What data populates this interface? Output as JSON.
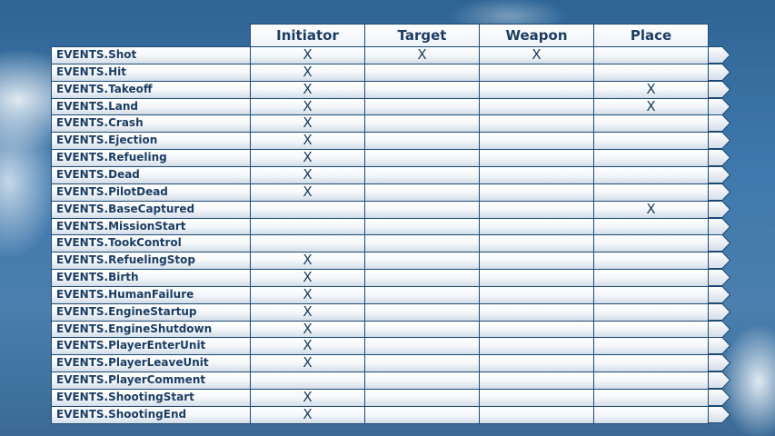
{
  "columns": [
    "Initiator",
    "Target",
    "Weapon",
    "Place"
  ],
  "mark_symbol": "X",
  "rows": [
    {
      "event": "EVENTS.Shot",
      "marks": [
        true,
        true,
        true,
        false
      ]
    },
    {
      "event": "EVENTS.Hit",
      "marks": [
        true,
        false,
        false,
        false
      ]
    },
    {
      "event": "EVENTS.Takeoff",
      "marks": [
        true,
        false,
        false,
        true
      ]
    },
    {
      "event": "EVENTS.Land",
      "marks": [
        true,
        false,
        false,
        true
      ]
    },
    {
      "event": "EVENTS.Crash",
      "marks": [
        true,
        false,
        false,
        false
      ]
    },
    {
      "event": "EVENTS.Ejection",
      "marks": [
        true,
        false,
        false,
        false
      ]
    },
    {
      "event": "EVENTS.Refueling",
      "marks": [
        true,
        false,
        false,
        false
      ]
    },
    {
      "event": "EVENTS.Dead",
      "marks": [
        true,
        false,
        false,
        false
      ]
    },
    {
      "event": "EVENTS.PilotDead",
      "marks": [
        true,
        false,
        false,
        false
      ]
    },
    {
      "event": "EVENTS.BaseCaptured",
      "marks": [
        false,
        false,
        false,
        true
      ]
    },
    {
      "event": "EVENTS.MissionStart",
      "marks": [
        false,
        false,
        false,
        false
      ]
    },
    {
      "event": "EVENTS.TookControl",
      "marks": [
        false,
        false,
        false,
        false
      ]
    },
    {
      "event": "EVENTS.RefuelingStop",
      "marks": [
        true,
        false,
        false,
        false
      ]
    },
    {
      "event": "EVENTS.Birth",
      "marks": [
        true,
        false,
        false,
        false
      ]
    },
    {
      "event": "EVENTS.HumanFailure",
      "marks": [
        true,
        false,
        false,
        false
      ]
    },
    {
      "event": "EVENTS.EngineStartup",
      "marks": [
        true,
        false,
        false,
        false
      ]
    },
    {
      "event": "EVENTS.EngineShutdown",
      "marks": [
        true,
        false,
        false,
        false
      ]
    },
    {
      "event": "EVENTS.PlayerEnterUnit",
      "marks": [
        true,
        false,
        false,
        false
      ]
    },
    {
      "event": "EVENTS.PlayerLeaveUnit",
      "marks": [
        true,
        false,
        false,
        false
      ]
    },
    {
      "event": "EVENTS.PlayerComment",
      "marks": [
        false,
        false,
        false,
        false
      ]
    },
    {
      "event": "EVENTS.ShootingStart",
      "marks": [
        true,
        false,
        false,
        false
      ]
    },
    {
      "event": "EVENTS.ShootingEnd",
      "marks": [
        true,
        false,
        false,
        false
      ]
    }
  ],
  "colors": {
    "border": "#1d4a75",
    "text": "#1c3d63"
  }
}
